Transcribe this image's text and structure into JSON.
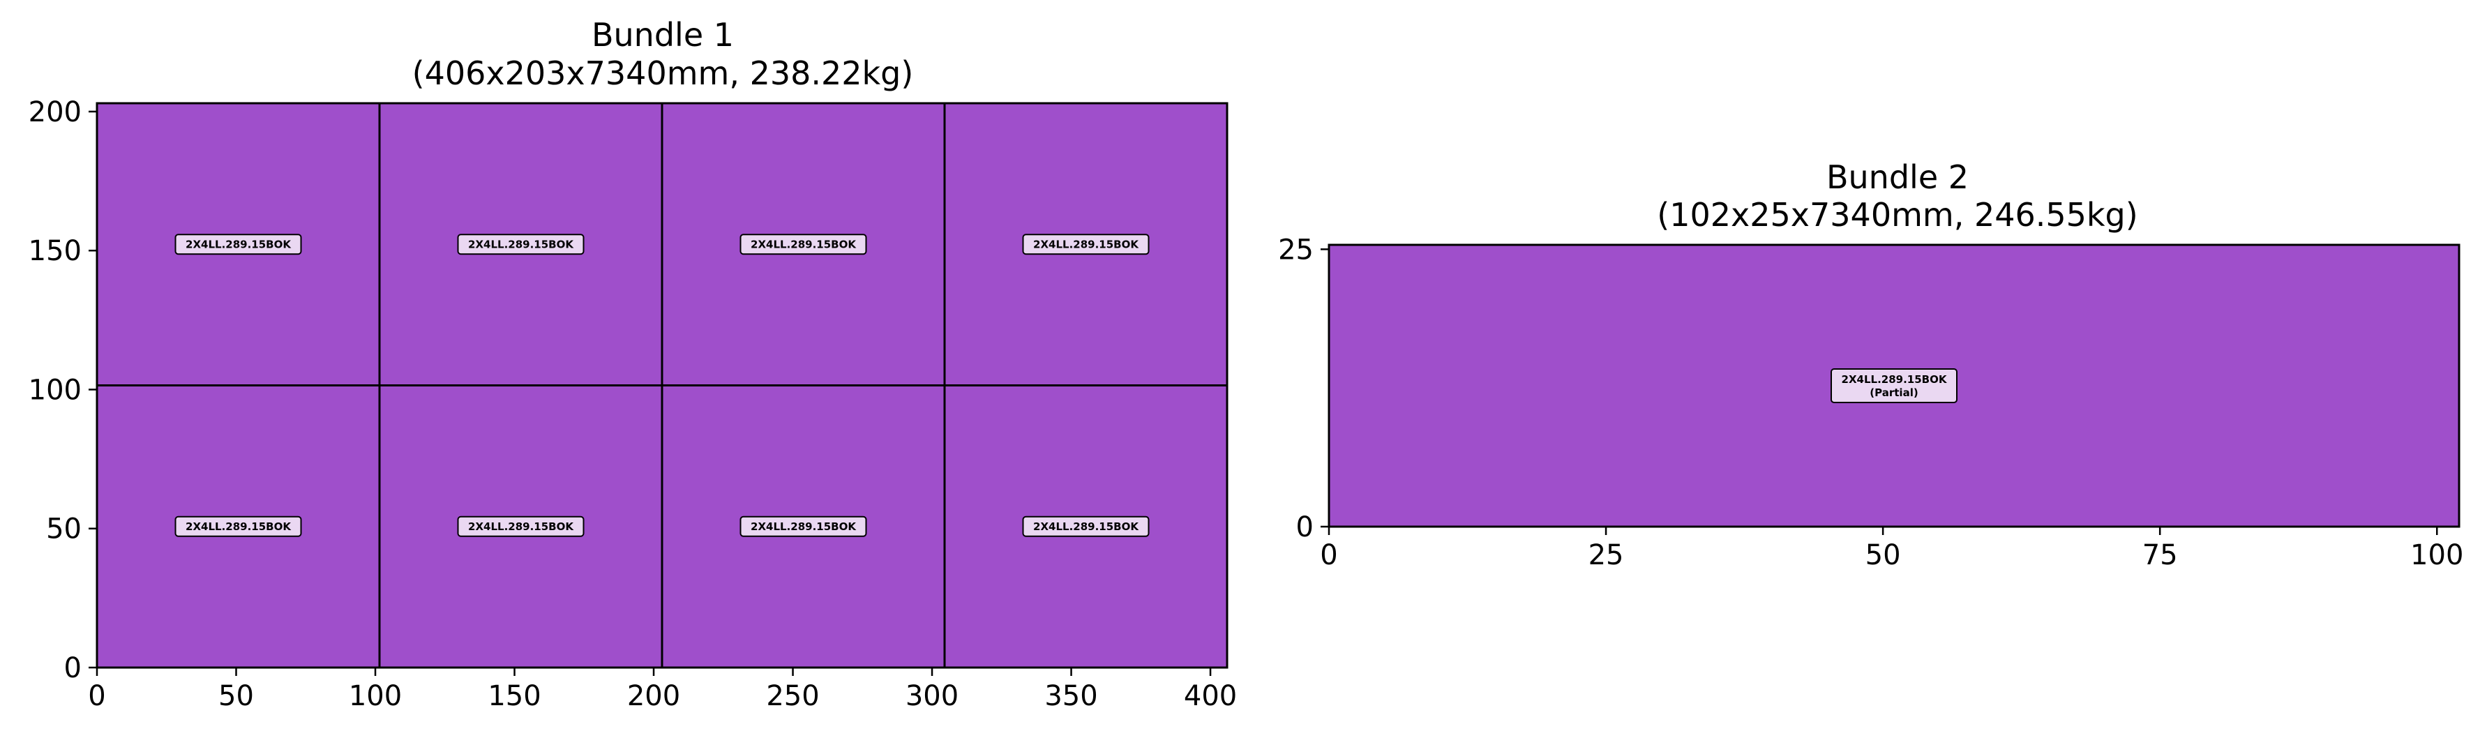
{
  "chart_data": [
    {
      "type": "heatmap",
      "title_line1": "Bundle 1",
      "title_line2": "(406x203x7340mm, 238.22kg)",
      "xlim": [
        0,
        406
      ],
      "ylim": [
        0,
        203
      ],
      "xticks": [
        0,
        50,
        100,
        150,
        200,
        250,
        300,
        350,
        400
      ],
      "yticks": [
        0,
        50,
        100,
        150,
        200
      ],
      "grid": false,
      "fill_color": "#9f4fcb",
      "label_box_color": "#ead8f2",
      "pieces": [
        {
          "x": 0,
          "y": 101.5,
          "w": 101.5,
          "h": 101.5,
          "label": "2X4LL.289.15BOK"
        },
        {
          "x": 101.5,
          "y": 101.5,
          "w": 101.5,
          "h": 101.5,
          "label": "2X4LL.289.15BOK"
        },
        {
          "x": 203,
          "y": 101.5,
          "w": 101.5,
          "h": 101.5,
          "label": "2X4LL.289.15BOK"
        },
        {
          "x": 304.5,
          "y": 101.5,
          "w": 101.5,
          "h": 101.5,
          "label": "2X4LL.289.15BOK"
        },
        {
          "x": 0,
          "y": 0,
          "w": 101.5,
          "h": 101.5,
          "label": "2X4LL.289.15BOK"
        },
        {
          "x": 101.5,
          "y": 0,
          "w": 101.5,
          "h": 101.5,
          "label": "2X4LL.289.15BOK"
        },
        {
          "x": 203,
          "y": 0,
          "w": 101.5,
          "h": 101.5,
          "label": "2X4LL.289.15BOK"
        },
        {
          "x": 304.5,
          "y": 0,
          "w": 101.5,
          "h": 101.5,
          "label": "2X4LL.289.15BOK"
        }
      ]
    },
    {
      "type": "heatmap",
      "title_line1": "Bundle 2",
      "title_line2": "(102x25x7340mm, 246.55kg)",
      "xlim": [
        0,
        102
      ],
      "ylim": [
        0,
        25.4
      ],
      "xticks": [
        0,
        25,
        50,
        75,
        100
      ],
      "yticks": [
        0,
        25
      ],
      "grid": false,
      "fill_color": "#9f4fcb",
      "label_box_color": "#ead8f2",
      "pieces": [
        {
          "x": 0,
          "y": 0,
          "w": 102,
          "h": 25.4,
          "label": "2X4LL.289.15BOK",
          "label2": "(Partial)"
        }
      ]
    }
  ]
}
